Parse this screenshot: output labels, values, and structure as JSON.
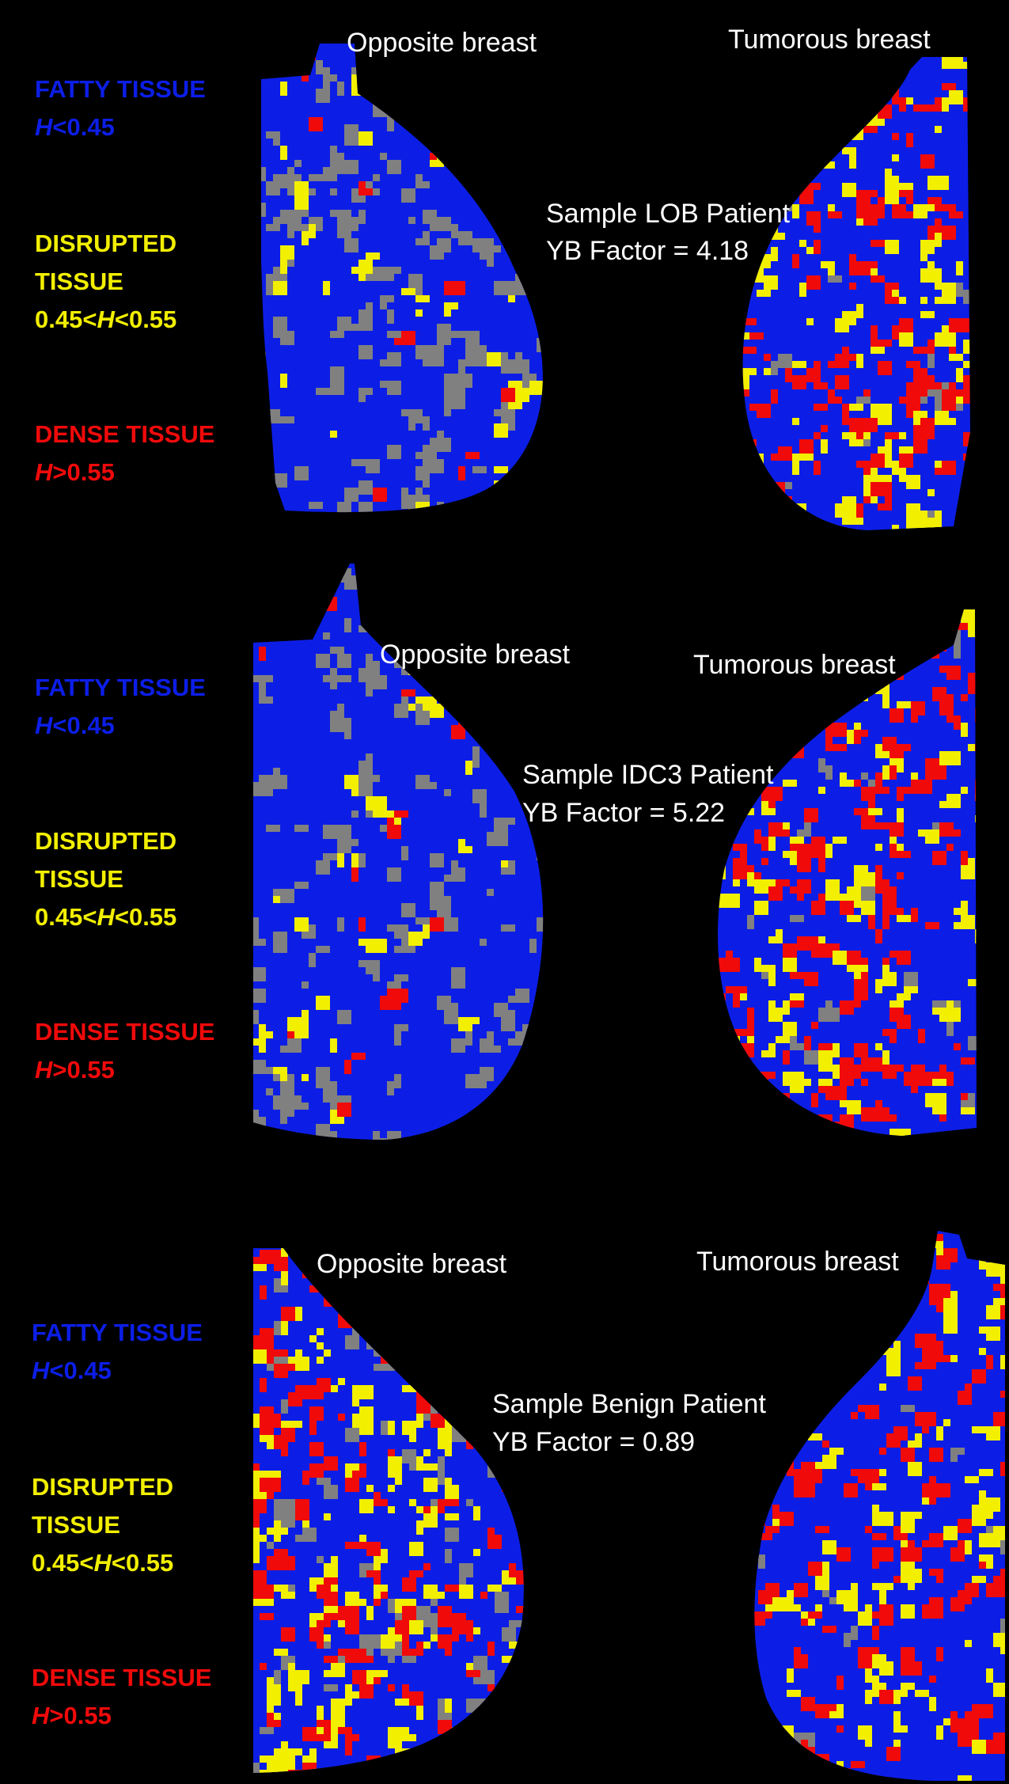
{
  "colors": {
    "background": "#000000",
    "fatty": "#0c1ee6",
    "disrupted": "#f2ef00",
    "dense": "#f00a0a",
    "unclassified": "#808080",
    "label_text": "#ffffff"
  },
  "legend": {
    "fatty_title": "FATTY TISSUE",
    "fatty_h": "H",
    "fatty_range": "<0.45",
    "disrupted_title_1": "DISRUPTED",
    "disrupted_title_2": "TISSUE",
    "disrupted_lower": "0.45<",
    "disrupted_h": "H",
    "disrupted_upper": "<0.55",
    "dense_title": "DENSE  TISSUE",
    "dense_h": "H",
    "dense_range": ">0.55"
  },
  "panels": [
    {
      "opposite_label": "Opposite breast",
      "tumorous_label": "Tumorous breast",
      "sample": "Sample LOB Patient",
      "yb": "YB Factor = 4.18",
      "mix": {
        "opposite": {
          "gray": 0.3,
          "yellow": 0.06,
          "red": 0.02
        },
        "tumorous": {
          "gray": 0.05,
          "yellow": 0.22,
          "red": 0.2
        }
      }
    },
    {
      "opposite_label": "Opposite breast",
      "tumorous_label": "Tumorous breast",
      "sample": "Sample IDC3 Patient",
      "yb": "YB Factor = 5.22",
      "mix": {
        "opposite": {
          "gray": 0.22,
          "yellow": 0.04,
          "red": 0.02
        },
        "tumorous": {
          "gray": 0.04,
          "yellow": 0.18,
          "red": 0.26
        }
      }
    },
    {
      "opposite_label": "Opposite breast",
      "tumorous_label": "Tumorous breast",
      "sample": "Sample Benign Patient",
      "yb": "YB Factor = 0.89",
      "mix": {
        "opposite": {
          "gray": 0.14,
          "yellow": 0.22,
          "red": 0.22
        },
        "tumorous": {
          "gray": 0.03,
          "yellow": 0.16,
          "red": 0.2
        }
      }
    }
  ]
}
